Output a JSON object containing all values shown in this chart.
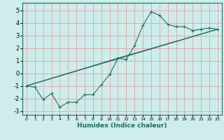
{
  "xlabel": "Humidex (Indice chaleur)",
  "xlim": [
    -0.5,
    23.5
  ],
  "ylim": [
    -3.3,
    5.6
  ],
  "xticks": [
    0,
    1,
    2,
    3,
    4,
    5,
    6,
    7,
    8,
    9,
    10,
    11,
    12,
    13,
    14,
    15,
    16,
    17,
    18,
    19,
    20,
    21,
    22,
    23
  ],
  "yticks": [
    -3,
    -2,
    -1,
    0,
    1,
    2,
    3,
    4,
    5
  ],
  "background_color": "#cdeeed",
  "grid_color": "#e0a8aa",
  "line_color": "#1a6b5a",
  "line1_x": [
    0,
    1,
    2,
    3,
    4,
    5,
    6,
    7,
    8,
    9,
    10,
    11,
    12,
    13,
    14,
    15,
    16,
    17,
    18,
    19,
    20,
    21,
    22,
    23
  ],
  "line1_y": [
    -1.0,
    -1.1,
    -2.1,
    -1.6,
    -2.7,
    -2.3,
    -2.3,
    -1.7,
    -1.7,
    -0.9,
    -0.1,
    1.2,
    1.1,
    2.2,
    3.8,
    4.9,
    4.6,
    3.9,
    3.7,
    3.7,
    3.4,
    3.5,
    3.6,
    3.5
  ],
  "line2_x": [
    0,
    23
  ],
  "line2_y": [
    -1.0,
    3.5
  ],
  "line3_x": [
    0,
    11,
    23
  ],
  "line3_y": [
    -1.0,
    1.2,
    3.5
  ]
}
